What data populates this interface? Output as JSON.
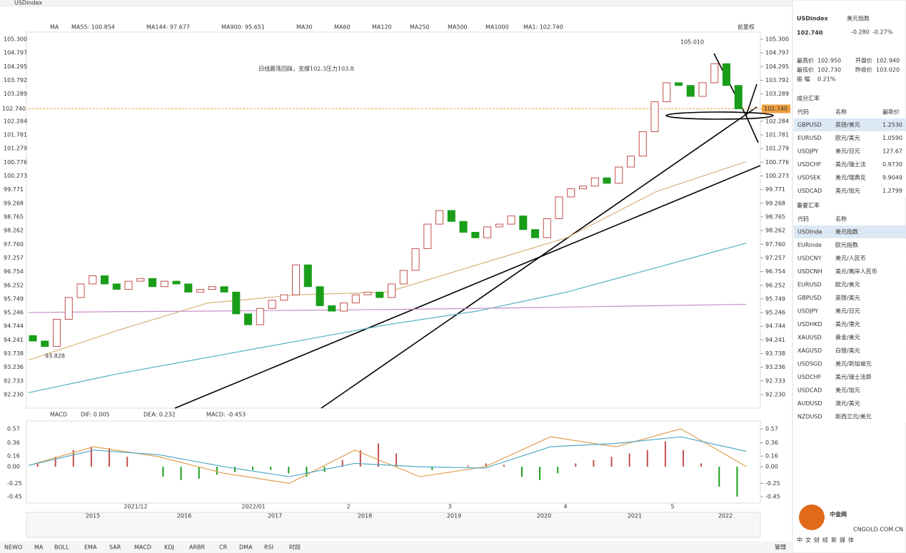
{
  "toolbar": {
    "symbol": "USDindex"
  },
  "indicators": {
    "ma_label": "MA",
    "items": [
      "MA55: 100.854",
      "MA144: 97.677",
      "MA900: 95.651",
      "MA30",
      "MA60",
      "MA120",
      "MA250",
      "MA500",
      "MA1000",
      "MA1: 102.740"
    ],
    "adjust": "前复权"
  },
  "annotation": "日线震荡回踩，支撑102.3压力103.8",
  "price_chart": {
    "ylim": [
      92.23,
      105.3
    ],
    "yticks": [
      {
        "value": 105.3,
        "label": "105.300"
      },
      104.797,
      104.295,
      103.792,
      103.289,
      102.284,
      101.781,
      101.279,
      100.776,
      100.273,
      99.771,
      99.268,
      98.765,
      98.262,
      {
        "value": 97.76,
        "label": "97.760"
      },
      97.257,
      96.754,
      96.252,
      95.749,
      95.246,
      94.744,
      94.241,
      93.738,
      93.236,
      92.733,
      {
        "value": 92.23,
        "label": "92.230"
      }
    ],
    "current": {
      "value": 102.74,
      "label": "102.740"
    },
    "high_label": "105.010",
    "low_label": "93.828",
    "open": [
      94.4,
      94.2,
      94.0,
      95.0,
      95.8,
      96.3,
      96.6,
      96.3,
      96.1,
      96.4,
      96.5,
      96.2,
      96.4,
      96.3,
      96.0,
      96.1,
      96.2,
      96.0,
      95.2,
      94.8,
      95.4,
      95.7,
      95.9,
      97.0,
      96.2,
      95.5,
      95.3,
      95.6,
      95.9,
      96.0,
      95.8,
      96.3,
      96.8,
      97.6,
      98.5,
      99.0,
      98.6,
      98.2,
      98.0,
      98.4,
      98.5,
      98.8,
      98.3,
      98.0,
      98.7,
      99.5,
      99.8,
      99.9,
      100.2,
      100.0,
      100.6,
      101.0,
      101.9,
      103.0,
      103.7,
      103.6,
      103.2,
      103.7,
      104.4,
      103.6
    ],
    "close": [
      94.2,
      94.0,
      95.0,
      95.8,
      96.3,
      96.6,
      96.3,
      96.1,
      96.4,
      96.5,
      96.2,
      96.4,
      96.3,
      96.0,
      96.1,
      96.2,
      96.0,
      95.2,
      94.8,
      95.4,
      95.7,
      95.9,
      97.0,
      96.2,
      95.5,
      95.3,
      95.6,
      95.9,
      96.0,
      95.8,
      96.3,
      96.8,
      97.6,
      98.5,
      99.0,
      98.6,
      98.2,
      98.0,
      98.4,
      98.5,
      98.8,
      98.3,
      98.0,
      98.7,
      99.5,
      99.8,
      99.9,
      100.2,
      100.0,
      100.6,
      101.0,
      101.9,
      103.0,
      103.7,
      103.6,
      103.2,
      103.7,
      104.4,
      103.6,
      102.74
    ],
    "up_color": "#c0504d",
    "down_color": "#1a9e1a",
    "ma_lines": [
      {
        "color": "#d9b27c",
        "values": [
          93.5,
          94.6,
          95.6,
          95.9,
          96.0,
          97.0,
          98.0,
          99.7,
          100.8
        ]
      },
      {
        "color": "#4fb0c6",
        "values": [
          92.3,
          93.0,
          93.6,
          94.2,
          94.8,
          95.3,
          96.0,
          96.9,
          97.8
        ]
      },
      {
        "color": "#c98fc9",
        "values": [
          95.25,
          95.28,
          95.3,
          95.33,
          95.36,
          95.4,
          95.45,
          95.5,
          95.55
        ]
      }
    ],
    "x_labels": [
      "2021/12",
      "2022/01",
      "2",
      "3",
      "4",
      "5"
    ]
  },
  "macd": {
    "header": [
      "MACD",
      "DIF: 0.005",
      "DEA: 0.232",
      "MACD: -0.453"
    ],
    "ylim": [
      -0.45,
      0.57
    ],
    "yticks": [
      0.57,
      0.36,
      0.16,
      {
        "value": 0,
        "label": "0.00"
      },
      -0.25,
      -0.45
    ],
    "hist": [
      0.05,
      0.15,
      0.25,
      0.3,
      0.28,
      0.15,
      0.0,
      -0.15,
      -0.2,
      -0.18,
      -0.12,
      -0.08,
      -0.05,
      -0.05,
      -0.1,
      -0.15,
      -0.08,
      0.1,
      0.25,
      0.35,
      0.2,
      0.0,
      -0.05,
      0.0,
      0.02,
      0.05,
      0.03,
      -0.15,
      -0.2,
      -0.1,
      0.05,
      0.1,
      0.15,
      0.2,
      0.25,
      0.38,
      0.25,
      0.05,
      -0.3,
      -0.45
    ],
    "dif": [
      0.02,
      0.3,
      0.15,
      -0.1,
      -0.25,
      0.25,
      -0.15,
      0.0,
      0.45,
      0.3,
      0.57,
      0.005
    ],
    "dea": [
      0.02,
      0.25,
      0.18,
      0.0,
      -0.15,
      0.05,
      0.0,
      -0.02,
      0.3,
      0.35,
      0.45,
      0.232
    ],
    "dif_color": "#e0a050",
    "dea_color": "#4fa8c8"
  },
  "navigator": {
    "years": [
      "2015",
      "2016",
      "2017",
      "2018",
      "2019",
      "2020",
      "2021",
      "2022"
    ]
  },
  "tabs": [
    "NEWO",
    "MA",
    "BOLL",
    "EMA",
    "SAR",
    "MACD",
    "KDJ",
    "ARBR",
    "CR",
    "DMA",
    "RSI",
    "时段"
  ],
  "manage": "管理",
  "quote": {
    "code": "USDindex",
    "name": "美元指数",
    "price": "102.740",
    "change": "-0.280",
    "pct": "-0.27%",
    "stats": [
      [
        "最高价",
        "102.950"
      ],
      [
        "开盘价",
        "102.940"
      ],
      [
        "最低价",
        "102.730"
      ],
      [
        "昨收价",
        "103.020"
      ],
      [
        "振  幅",
        "0.21%"
      ]
    ]
  },
  "components": {
    "title": "成分汇率",
    "header": [
      "代码",
      "名称",
      "最新价"
    ],
    "rows": [
      [
        "GBPUSD",
        "英镑/美元",
        "1.2530"
      ],
      [
        "EURUSD",
        "欧元/美元",
        "1.0590"
      ],
      [
        "USDJPY",
        "美元/日元",
        "127.67"
      ],
      [
        "USDCHF",
        "美元/瑞士法",
        "0.9730"
      ],
      [
        "USDSEK",
        "美元/瑞典克",
        "9.9049"
      ],
      [
        "USDCAD",
        "美元/加元",
        "1.2799"
      ]
    ]
  },
  "important": {
    "title": "重要汇率",
    "header": [
      "代码",
      "名称"
    ],
    "rows": [
      [
        "USDInde",
        "美元指数"
      ],
      [
        "EURinde",
        "欧元指数"
      ],
      [
        "USDCNY",
        "美元/人民币"
      ],
      [
        "USDCNH",
        "美元/离岸人民币"
      ],
      [
        "EURUSD",
        "欧元/美元"
      ],
      [
        "GBPUSD",
        "英镑/美元"
      ],
      [
        "USDJPY",
        "美元/日元"
      ],
      [
        "USDHKD",
        "美元/港元"
      ],
      [
        "XAUUSD",
        "黄金/美元"
      ],
      [
        "XAGUSD",
        "白银/美元"
      ],
      [
        "USDSGD",
        "美元/新加坡元"
      ],
      [
        "USDCHF",
        "美元/瑞士法郎"
      ],
      [
        "USDCAD",
        "美元/加元"
      ],
      [
        "AUDUSD",
        "澳元/美元"
      ],
      [
        "NZDUSD",
        "新西兰元/美元"
      ]
    ]
  },
  "watermark": {
    "brand": "中金网",
    "url": "CNGOLD.COM.CN",
    "slogan": "中文财经新媒体"
  }
}
